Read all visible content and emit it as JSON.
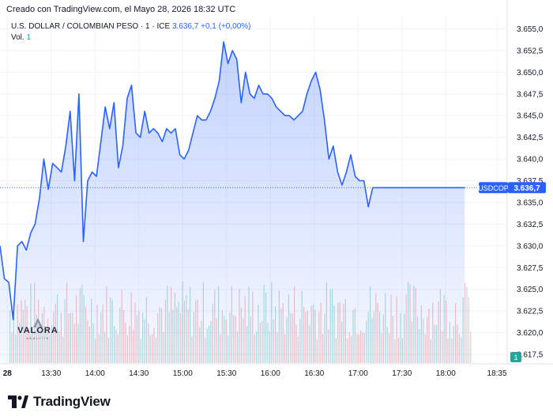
{
  "header": {
    "caption": "Creado con TradingView.com, el Mayo 28, 2026 18:32 UTC"
  },
  "symbol": {
    "name": "U.S. DOLLAR / COLOMBIAN PESO · 1 · ICE",
    "last": "3.636,7",
    "change": "+0,1 (+0,00%)"
  },
  "volume": {
    "label": "Vol.",
    "value": "1"
  },
  "price_label": {
    "ticker": "USDCOP",
    "value": "3.636,7"
  },
  "volume_badge": "1",
  "watermark": {
    "name": "VALORA",
    "sub": "ANALITIK"
  },
  "footer": {
    "brand": "TradingView"
  },
  "colors": {
    "line": "#2962ff",
    "volume_up": "#26a69a",
    "volume_down": "#ef5350"
  },
  "chart_data": {
    "type": "area",
    "symbol": "USDCOP",
    "y_ticks": [
      "3.655,0",
      "3.652,5",
      "3.650,0",
      "3.647,5",
      "3.645,0",
      "3.642,5",
      "3.640,0",
      "3.637,5",
      "3.635,0",
      "3.632,5",
      "3.630,0",
      "3.627,5",
      "3.625,0",
      "3.622,5",
      "3.620,0",
      "3.617,5"
    ],
    "y_tick_values": [
      3655,
      3652.5,
      3650,
      3647.5,
      3645,
      3642.5,
      3640,
      3637.5,
      3635,
      3632.5,
      3630,
      3627.5,
      3625,
      3622.5,
      3620,
      3617.5
    ],
    "x_ticks": [
      "28",
      "13:30",
      "14:00",
      "14:30",
      "15:00",
      "15:30",
      "16:00",
      "16:30",
      "17:00",
      "17:30",
      "18:00",
      "18:35"
    ],
    "x_tick_minutes": [
      780,
      810,
      840,
      870,
      900,
      930,
      960,
      990,
      1020,
      1050,
      1080,
      1115
    ],
    "ylim": [
      3616.5,
      3656.5
    ],
    "xlim": [
      775,
      1122
    ],
    "last_price": 3636.7,
    "x": [
      775,
      778,
      781,
      784,
      787,
      790,
      793,
      796,
      799,
      802,
      805,
      808,
      811,
      814,
      817,
      820,
      823,
      826,
      829,
      832,
      835,
      838,
      841,
      844,
      847,
      850,
      853,
      856,
      859,
      862,
      865,
      868,
      871,
      874,
      877,
      880,
      883,
      886,
      889,
      892,
      895,
      898,
      901,
      904,
      907,
      910,
      913,
      916,
      919,
      922,
      925,
      928,
      931,
      934,
      937,
      940,
      943,
      946,
      949,
      952,
      955,
      958,
      961,
      964,
      967,
      970,
      973,
      976,
      979,
      982,
      985,
      988,
      991,
      994,
      997,
      1000,
      1003,
      1006,
      1009,
      1012,
      1015,
      1018,
      1021,
      1024,
      1027,
      1030,
      1033,
      1036,
      1039,
      1042,
      1045,
      1048,
      1051,
      1054,
      1057,
      1060,
      1063,
      1066,
      1069,
      1072,
      1075,
      1078,
      1081,
      1084,
      1087,
      1090,
      1093
    ],
    "y": [
      3630.0,
      3626.2,
      3625.8,
      3621.5,
      3630.0,
      3630.5,
      3629.5,
      3631.5,
      3632.5,
      3635.5,
      3640.0,
      3636.5,
      3639.5,
      3639.0,
      3638.5,
      3641.5,
      3645.5,
      3637.5,
      3647.5,
      3630.5,
      3637.5,
      3638.5,
      3638.0,
      3642.0,
      3646.0,
      3643.5,
      3646.5,
      3639.0,
      3641.5,
      3647.0,
      3648.5,
      3643.0,
      3642.5,
      3645.5,
      3643.0,
      3643.5,
      3643.0,
      3642.0,
      3643.5,
      3643.0,
      3643.5,
      3640.5,
      3640.0,
      3641.0,
      3643.0,
      3645.0,
      3644.5,
      3644.5,
      3645.5,
      3647.0,
      3649.0,
      3653.5,
      3651.0,
      3652.5,
      3651.5,
      3646.5,
      3650.0,
      3647.5,
      3647.0,
      3648.5,
      3647.5,
      3647.5,
      3647.0,
      3646.0,
      3645.5,
      3645.0,
      3645.0,
      3644.5,
      3645.0,
      3645.5,
      3647.5,
      3649.0,
      3650.0,
      3648.0,
      3644.5,
      3640.0,
      3641.5,
      3638.5,
      3637.0,
      3638.5,
      3640.5,
      3638.0,
      3637.5,
      3637.5,
      3634.5,
      3636.7,
      3636.7,
      3636.7,
      3636.7,
      3636.7,
      3636.7,
      3636.7,
      3636.7,
      3636.7,
      3636.7,
      3636.7,
      3636.7,
      3636.7,
      3636.7,
      3636.7,
      3636.7,
      3636.7,
      3636.7,
      3636.7,
      3636.7,
      3636.7,
      3636.7
    ]
  }
}
